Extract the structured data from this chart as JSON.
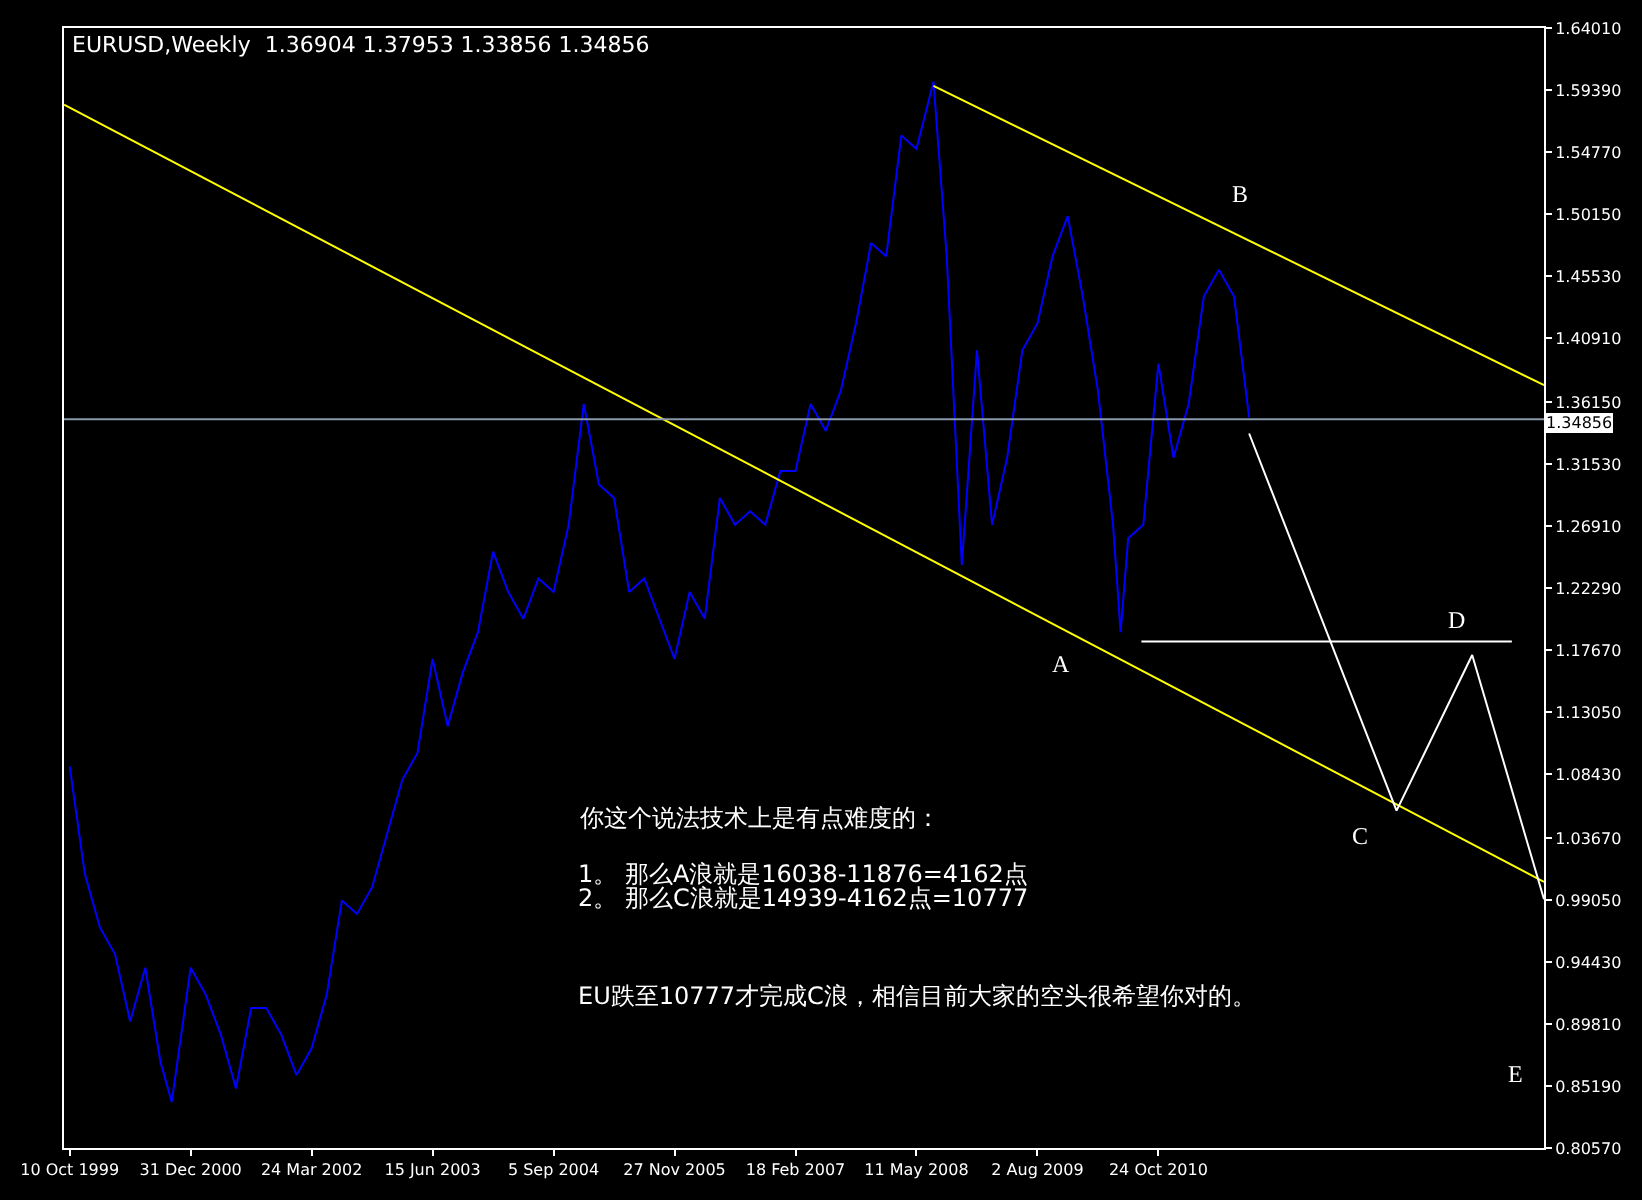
{
  "chart_data": {
    "type": "line",
    "title": "EURUSD,Weekly  1.36904 1.37953 1.33856 1.34856",
    "xlim": [
      "1999-09-19",
      "2014-09-21"
    ],
    "ylim": [
      0.8057,
      1.6401
    ],
    "xticks": [
      {
        "value": "1999-10-10",
        "label": "10 Oct 1999"
      },
      {
        "value": "2000-12-31",
        "label": "31 Dec 2000"
      },
      {
        "value": "2002-03-24",
        "label": "24 Mar 2002"
      },
      {
        "value": "2003-06-15",
        "label": "15 Jun 2003"
      },
      {
        "value": "2004-09-05",
        "label": "5 Sep 2004"
      },
      {
        "value": "2005-11-27",
        "label": "27 Nov 2005"
      },
      {
        "value": "2007-02-18",
        "label": "18 Feb 2007"
      },
      {
        "value": "2008-05-11",
        "label": "11 May 2008"
      },
      {
        "value": "2009-08-02",
        "label": "2 Aug 2009"
      },
      {
        "value": "2010-10-24",
        "label": "24 Oct 2010"
      }
    ],
    "yticks": [
      {
        "value": 1.6401,
        "label": "1.64010"
      },
      {
        "value": 1.5939,
        "label": "1.59390"
      },
      {
        "value": 1.5477,
        "label": "1.54770"
      },
      {
        "value": 1.5015,
        "label": "1.50150"
      },
      {
        "value": 1.4553,
        "label": "1.45530"
      },
      {
        "value": 1.4091,
        "label": "1.40910"
      },
      {
        "value": 1.3615,
        "label": "1.36150"
      },
      {
        "value": 1.3153,
        "label": "1.31530"
      },
      {
        "value": 1.2691,
        "label": "1.26910"
      },
      {
        "value": 1.2229,
        "label": "1.22290"
      },
      {
        "value": 1.1767,
        "label": "1.17670"
      },
      {
        "value": 1.1305,
        "label": "1.13050"
      },
      {
        "value": 1.0843,
        "label": "1.08430"
      },
      {
        "value": 1.0367,
        "label": "1.03670"
      },
      {
        "value": 0.9905,
        "label": "0.99050"
      },
      {
        "value": 0.9443,
        "label": "0.94430"
      },
      {
        "value": 0.8981,
        "label": "0.89810"
      },
      {
        "value": 0.8519,
        "label": "0.85190"
      },
      {
        "value": 0.8057,
        "label": "0.80570"
      }
    ],
    "series": [
      {
        "color": "#0000ff",
        "x": [
          "1999-10-10",
          "1999-12-05",
          "2000-01-30",
          "2000-03-26",
          "2000-05-21",
          "2000-07-16",
          "2000-09-10",
          "2000-10-22",
          "2000-12-31",
          "2001-02-25",
          "2001-04-22",
          "2001-06-17",
          "2001-08-12",
          "2001-10-07",
          "2001-12-02",
          "2002-01-27",
          "2002-03-24",
          "2002-05-19",
          "2002-07-14",
          "2002-09-08",
          "2002-11-03",
          "2002-12-29",
          "2003-02-23",
          "2003-04-20",
          "2003-06-15",
          "2003-08-10",
          "2003-10-05",
          "2003-11-30",
          "2004-01-25",
          "2004-03-21",
          "2004-05-16",
          "2004-07-11",
          "2004-09-05",
          "2004-10-31",
          "2004-12-26",
          "2005-02-20",
          "2005-04-17",
          "2005-06-12",
          "2005-08-07",
          "2005-10-02",
          "2005-11-27",
          "2006-01-22",
          "2006-03-19",
          "2006-05-14",
          "2006-07-09",
          "2006-09-03",
          "2006-10-29",
          "2006-12-24",
          "2007-02-18",
          "2007-04-15",
          "2007-06-10",
          "2007-08-05",
          "2007-09-30",
          "2007-11-25",
          "2008-01-20",
          "2008-03-16",
          "2008-05-11",
          "2008-07-13",
          "2008-08-31",
          "2008-10-26",
          "2008-12-21",
          "2009-02-15",
          "2009-04-12",
          "2009-06-07",
          "2009-08-02",
          "2009-09-27",
          "2009-11-22",
          "2010-01-17",
          "2010-03-14",
          "2010-05-09",
          "2010-06-06",
          "2010-07-04",
          "2010-08-29",
          "2010-10-24",
          "2010-12-19",
          "2011-02-13",
          "2011-04-10",
          "2011-06-05",
          "2011-07-31",
          "2011-09-25"
        ],
        "values": [
          1.09,
          1.01,
          0.97,
          0.95,
          0.9,
          0.94,
          0.87,
          0.84,
          0.94,
          0.92,
          0.89,
          0.85,
          0.91,
          0.91,
          0.89,
          0.86,
          0.88,
          0.92,
          0.99,
          0.98,
          1.0,
          1.04,
          1.08,
          1.1,
          1.17,
          1.12,
          1.16,
          1.19,
          1.25,
          1.22,
          1.2,
          1.23,
          1.22,
          1.27,
          1.36,
          1.3,
          1.29,
          1.22,
          1.23,
          1.2,
          1.17,
          1.22,
          1.2,
          1.29,
          1.27,
          1.28,
          1.27,
          1.31,
          1.31,
          1.36,
          1.34,
          1.37,
          1.42,
          1.48,
          1.47,
          1.56,
          1.55,
          1.6,
          1.47,
          1.24,
          1.4,
          1.27,
          1.32,
          1.4,
          1.42,
          1.47,
          1.5,
          1.44,
          1.37,
          1.27,
          1.19,
          1.26,
          1.27,
          1.39,
          1.32,
          1.36,
          1.44,
          1.46,
          1.44,
          1.35
        ]
      },
      {
        "color": "#ffff00",
        "x": [
          "1999-09-19",
          "2014-09-21"
        ],
        "values": [
          1.583,
          1.004
        ]
      },
      {
        "color": "#ffff00",
        "x": [
          "2008-07-13",
          "2014-09-21"
        ],
        "values": [
          1.597,
          1.374
        ]
      },
      {
        "color": "#ffffff",
        "x": [
          "2011-09-25",
          "2013-03-24",
          "2013-12-29",
          "2014-09-21"
        ],
        "values": [
          1.338,
          1.057,
          1.173,
          0.991
        ]
      },
      {
        "color": "#ffffff",
        "x": [
          "2010-08-22",
          "2014-05-25"
        ],
        "values": [
          1.183,
          1.183
        ]
      }
    ],
    "ref_lines": [
      {
        "axis": "y",
        "value": 1.34856,
        "label": "1.34856",
        "color": "#8899aa"
      }
    ],
    "annotations": [
      "A",
      "B",
      "C",
      "D",
      "E",
      "你这个说法技术上是有点难度的：",
      "1。 那么A浪就是16038-11876=4162点",
      "2。 那么C浪就是14939-4162点=10777",
      "EU跌至10777才完成C浪，相信目前大家的空头很希望你对的。"
    ],
    "grid": false,
    "marker": "none",
    "line_style": "solid"
  }
}
